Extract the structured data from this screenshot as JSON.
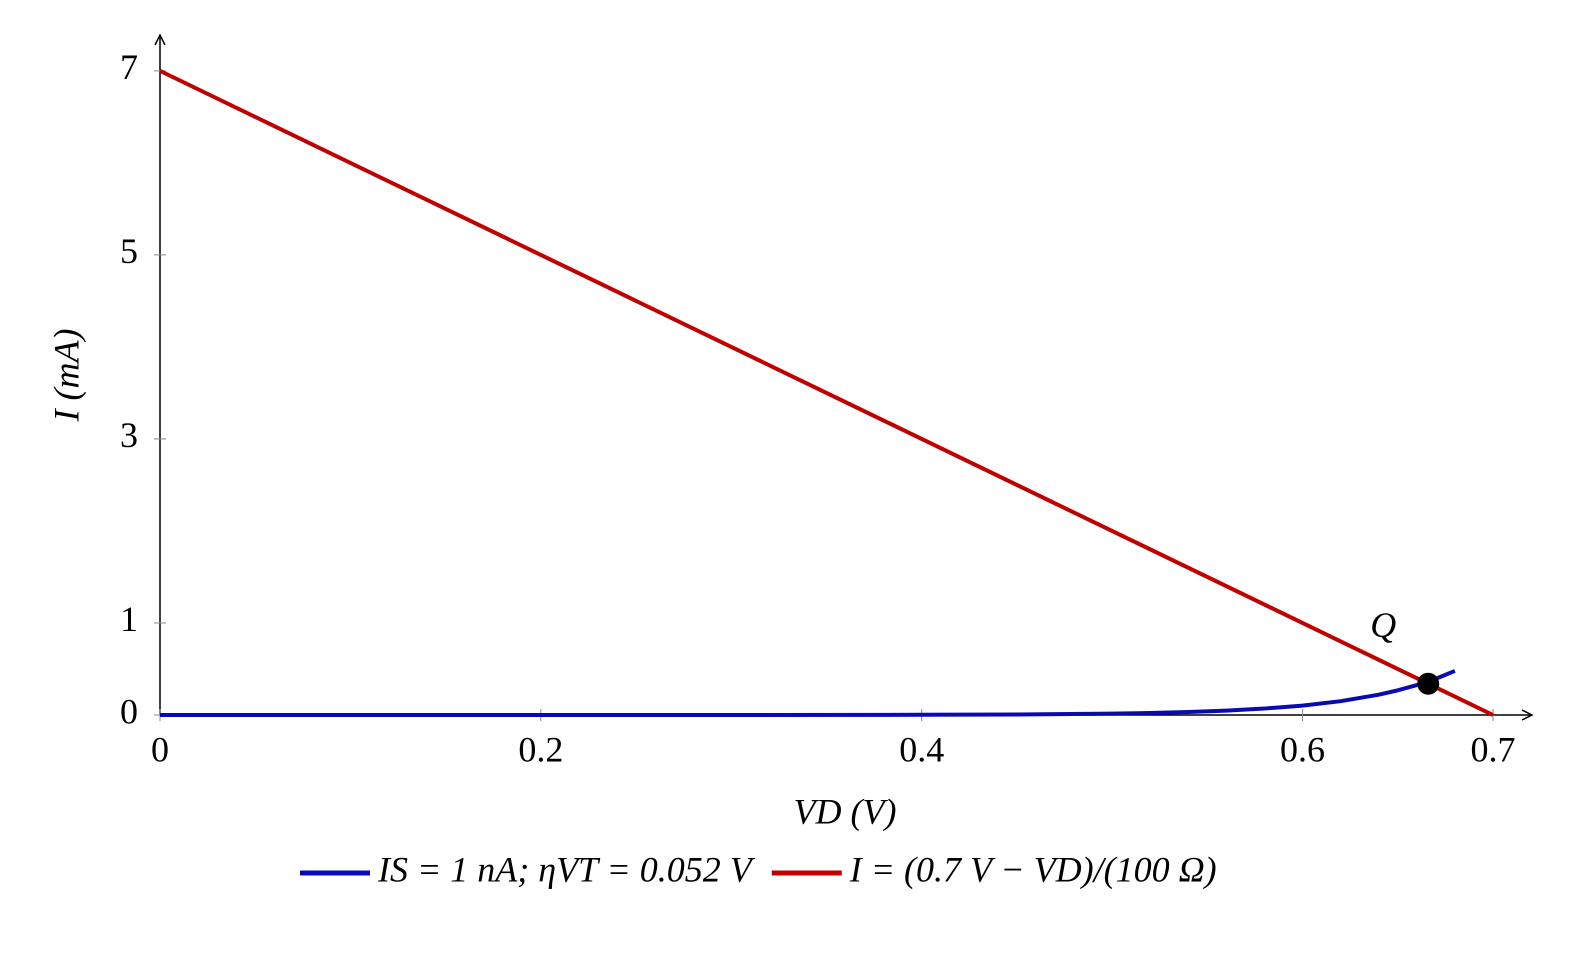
{
  "chart_data": {
    "type": "line",
    "xlabel": "VD (V)",
    "ylabel": "I (mA)",
    "xlim": [
      0,
      0.7205
    ],
    "ylim": [
      0,
      7.39
    ],
    "xticks": [
      0,
      0.2,
      0.4,
      0.6,
      0.7
    ],
    "yticks": [
      0,
      1,
      3,
      5,
      7
    ],
    "series": [
      {
        "name": "IS = 1 nA; ηVT = 0.052 V",
        "color": "#0a0ab4",
        "x": [
          0,
          0.1,
          0.2,
          0.3,
          0.4,
          0.45,
          0.5,
          0.52,
          0.54,
          0.56,
          0.58,
          0.6,
          0.62,
          0.64,
          0.65,
          0.66,
          0.67,
          0.68
        ],
        "values": [
          0,
          0,
          5e-05,
          0.0003,
          0.0022,
          0.0057,
          0.015,
          0.022,
          0.032,
          0.0475,
          0.07,
          0.102,
          0.15,
          0.221,
          0.268,
          0.325,
          0.394,
          0.479
        ]
      },
      {
        "name": "I = (0.7 V − VD)/(100 Ω)",
        "color": "#c00000",
        "x": [
          0,
          0.7
        ],
        "values": [
          7,
          0
        ]
      }
    ],
    "annotations": [
      {
        "text": "Q",
        "x": 0.666,
        "y": 0.34
      }
    ]
  }
}
